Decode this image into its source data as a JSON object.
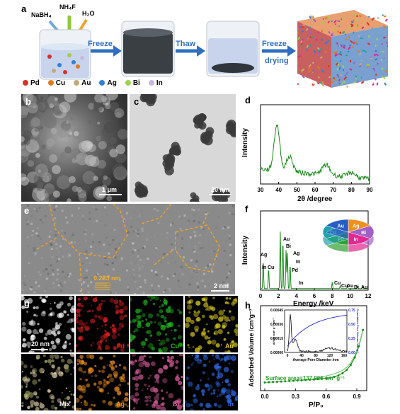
{
  "panel_labels": {
    "a": "a",
    "b": "b",
    "c": "c",
    "d": "d",
    "e": "e",
    "f": "f",
    "g": "g",
    "h": "h"
  },
  "panel_a": {
    "reagents": [
      "NaBH₄",
      "NH₄F",
      "H₂O"
    ],
    "steps": [
      "Freeze",
      "Thaw",
      "Freeze",
      "drying"
    ],
    "legend": [
      {
        "label": "Pd",
        "color": "#d9302a"
      },
      {
        "label": "Cu",
        "color": "#e07a22"
      },
      {
        "label": "Au",
        "color": "#c8a878"
      },
      {
        "label": "Ag",
        "color": "#2f7fd8"
      },
      {
        "label": "Bi",
        "color": "#9ed24a"
      },
      {
        "label": "In",
        "color": "#c8b8e0"
      }
    ],
    "arrow_color": "#2f6fc0"
  },
  "panel_b": {
    "scalebar": "1 μm"
  },
  "panel_c": {
    "scalebar": "20 nm"
  },
  "panel_d": {
    "ylabel": "Intensity",
    "xlabel": "2θ /degree",
    "xticks": [
      "30",
      "40",
      "50",
      "60",
      "70",
      "80",
      "90"
    ]
  },
  "panel_e": {
    "lattice": "0.233 nm",
    "scalebar": "2 nm"
  },
  "panel_f": {
    "ylabel": "Intensity",
    "xlabel": "Energy /keV",
    "xticks": [
      "0",
      "2",
      "4",
      "6",
      "8",
      "10",
      "12"
    ],
    "peak_labels": [
      "Ag",
      "In",
      "Cu",
      "Au",
      "Bi",
      "Ag",
      "In",
      "Pd",
      "In",
      "Cu",
      "Cu",
      "Au",
      "Bi",
      "Au"
    ],
    "pie": [
      {
        "label": "Ag",
        "color": "#f0901c"
      },
      {
        "label": "Bi",
        "color": "#a060c8"
      },
      {
        "label": "In",
        "color": "#e02890"
      },
      {
        "label": "Pd",
        "color": "#30a030"
      },
      {
        "label": "Cu",
        "color": "#20a0a8"
      },
      {
        "label": "Au",
        "color": "#2a5cc8"
      }
    ]
  },
  "panel_g": {
    "maps": [
      {
        "label": "",
        "color": "#ffffff"
      },
      {
        "label": "Pd",
        "color": "#e02020"
      },
      {
        "label": "Cu",
        "color": "#20c020"
      },
      {
        "label": "Au",
        "color": "#e0d020"
      },
      {
        "label": "Mix",
        "color": "#ffffff"
      },
      {
        "label": "Ag",
        "color": "#f09020"
      },
      {
        "label": "Bi",
        "color": "#e060a0"
      },
      {
        "label": "In",
        "color": "#3070f0"
      }
    ],
    "scalebar": "20 nm"
  },
  "panel_h": {
    "ylabel": "Adsorbed Volume /cm³g⁻¹",
    "xlabel": "P/P₀",
    "xticks": [
      "0.0",
      "0.3",
      "0.6",
      "0.9"
    ],
    "annotation": "Surface area=137.906 cm² g⁻¹",
    "inset": {
      "ylabel_left": "dV/dD /cm³ g⁻¹ nm⁻¹",
      "ylabel_right": "Cumulative Pore Volume /cm³ g⁻¹",
      "xlabel": "Average Pore Diameter /nm",
      "yticks_left": [
        "0.00045",
        "0.00030",
        "0.00015",
        "0.00000"
      ],
      "yticks_right": [
        "0.75",
        "0.50",
        "0.25",
        "0.00"
      ],
      "xticks": [
        "0",
        "40",
        "80",
        "120",
        "160"
      ]
    }
  }
}
